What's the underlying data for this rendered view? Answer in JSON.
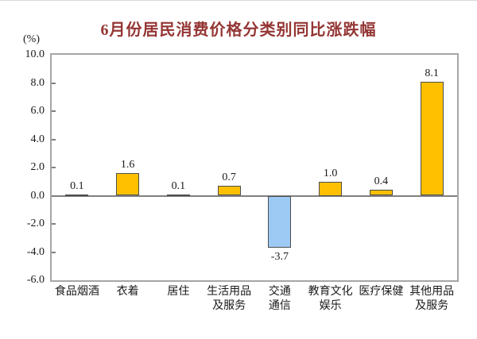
{
  "chart_data": {
    "type": "bar",
    "title": "6月份居民消费价格分类别同比涨跌幅",
    "unit_label": "(%)",
    "categories": [
      "食品烟酒",
      "衣着",
      "居住",
      "生活用品\n及服务",
      "交通\n通信",
      "教育文化\n娱乐",
      "医疗保健",
      "其他用品\n及服务"
    ],
    "values": [
      0.1,
      1.6,
      0.1,
      0.7,
      -3.7,
      1.0,
      0.4,
      8.1
    ],
    "value_labels": [
      "0.1",
      "1.6",
      "0.1",
      "0.7",
      "-3.7",
      "1.0",
      "0.4",
      "8.1"
    ],
    "ylim": [
      -6.0,
      10.0
    ],
    "ytick_step": 2.0,
    "ytick_labels": [
      "10.0",
      "8.0",
      "6.0",
      "4.0",
      "2.0",
      "0.0",
      "-2.0",
      "-4.0",
      "-6.0"
    ],
    "grid": false,
    "legend": "none",
    "colors": {
      "positive_bar": "#FFC000",
      "negative_bar": "#9DC9F5",
      "bar_border": "#4D4D4D",
      "plot_border": "#A6A6A6",
      "zero_line": "#808080",
      "tick": "#808080",
      "title": "#943634",
      "text": "#1A1A1A"
    }
  }
}
